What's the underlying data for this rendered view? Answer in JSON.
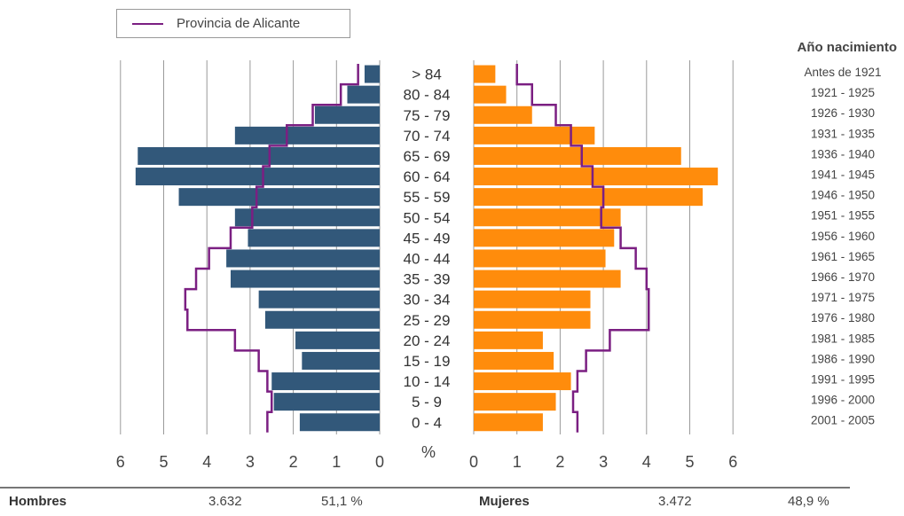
{
  "legend": {
    "label": "Provincia de Alicante",
    "color": "#7b1f82"
  },
  "birth_year_title": "Año nacimiento",
  "footer": {
    "hombres_label": "Hombres",
    "hombres_count": "3.632",
    "hombres_pct": "51,1 %",
    "mujeres_label": "Mujeres",
    "mujeres_count": "3.472",
    "mujeres_pct": "48,9 %"
  },
  "chart_data": {
    "type": "bar",
    "orientation": "horizontal-population-pyramid",
    "unit_label": "%",
    "categories": [
      "> 84",
      "80 - 84",
      "75 - 79",
      "70 - 74",
      "65 - 69",
      "60 - 64",
      "55 - 59",
      "50 - 54",
      "45 - 49",
      "40 - 44",
      "35 - 39",
      "30 - 34",
      "25 - 29",
      "20 - 24",
      "15 - 19",
      "10 - 14",
      "5 - 9",
      "0 - 4"
    ],
    "birth_years": [
      "Antes de 1921",
      "1921 - 1925",
      "1926 - 1930",
      "1931 - 1935",
      "1936 - 1940",
      "1941 - 1945",
      "1946 - 1950",
      "1951 - 1955",
      "1956 - 1960",
      "1961 - 1965",
      "1966 - 1970",
      "1971 - 1975",
      "1976 - 1980",
      "1981 - 1985",
      "1986 - 1990",
      "1991 - 1995",
      "1996 - 2000",
      "2001 - 2005"
    ],
    "axis_ticks": [
      0,
      1,
      2,
      3,
      4,
      5,
      6
    ],
    "xlim": [
      0,
      6
    ],
    "grid": true,
    "series": [
      {
        "side": "left",
        "color": "#32587a",
        "values": [
          0.35,
          0.75,
          1.5,
          3.35,
          5.6,
          5.65,
          4.65,
          3.35,
          3.05,
          3.55,
          3.45,
          2.8,
          2.65,
          1.95,
          1.8,
          2.5,
          2.45,
          1.85
        ]
      },
      {
        "side": "right",
        "color": "#ff8c0c",
        "values": [
          0.5,
          0.75,
          1.35,
          2.8,
          4.8,
          5.65,
          5.3,
          3.4,
          3.25,
          3.05,
          3.4,
          2.7,
          2.7,
          1.6,
          1.85,
          2.25,
          1.9,
          1.6
        ]
      },
      {
        "name": "Provincia de Alicante",
        "side": "left",
        "color": "#7b1f82",
        "style": "step-line",
        "values": [
          0.5,
          0.9,
          1.55,
          2.15,
          2.55,
          2.7,
          2.85,
          2.95,
          3.45,
          3.95,
          4.25,
          4.5,
          4.45,
          3.35,
          2.8,
          2.6,
          2.5,
          2.6
        ]
      },
      {
        "name": "Provincia de Alicante",
        "side": "right",
        "color": "#7b1f82",
        "style": "step-line",
        "values": [
          1.0,
          1.35,
          1.9,
          2.25,
          2.5,
          2.75,
          3.0,
          2.95,
          3.4,
          3.75,
          4.0,
          4.05,
          4.05,
          3.15,
          2.6,
          2.4,
          2.3,
          2.4
        ]
      }
    ]
  }
}
